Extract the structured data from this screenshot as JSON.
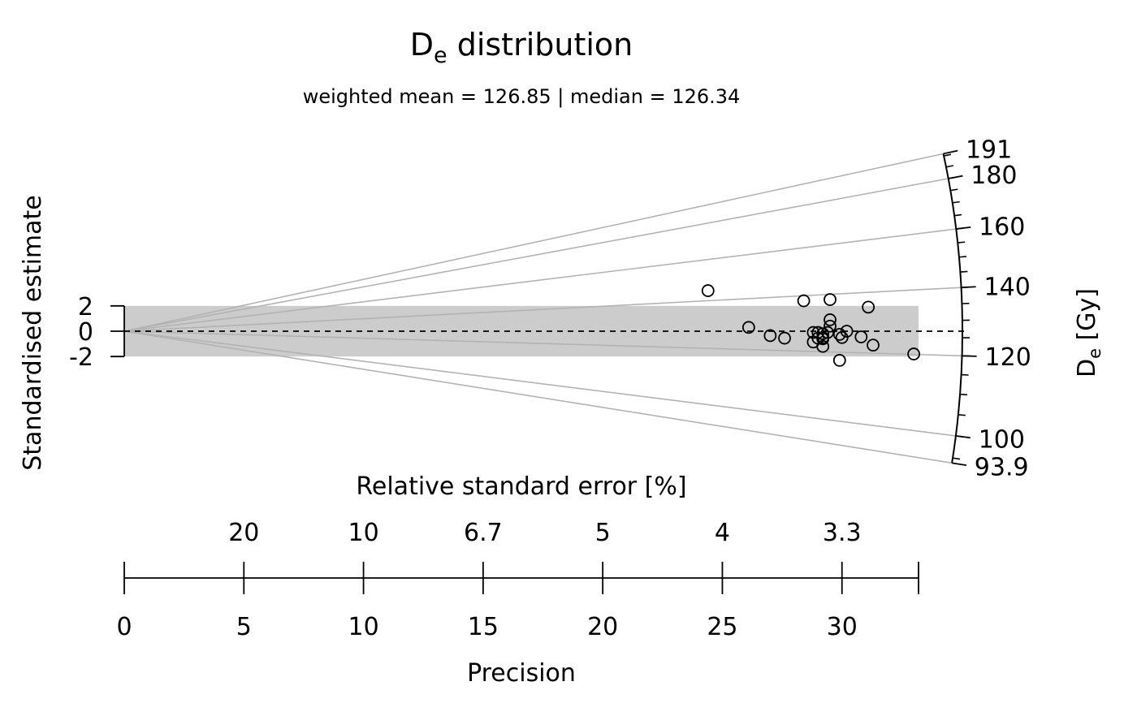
{
  "chart_data": {
    "type": "scatter",
    "variant": "radial",
    "title": {
      "main": "D",
      "sub": "e",
      "rest": " distribution"
    },
    "subtitle": "weighted mean = 126.85 | median = 126.34",
    "ylabel": "Standardised estimate",
    "y_ticks": [
      "2",
      "0",
      "-2"
    ],
    "y_band": [
      -2,
      2
    ],
    "zlabel": {
      "main": "D",
      "sub": "e",
      "rest": " [Gy]"
    },
    "z_ticks": [
      "191",
      "180",
      "160",
      "140",
      "120",
      "100",
      "93.9"
    ],
    "z_tick_values": [
      191,
      180,
      160,
      140,
      120,
      100,
      93.9
    ],
    "central_value": 126.85,
    "x_top_label": "Relative standard error [%]",
    "x_top_ticks": [
      "20",
      "10",
      "6.7",
      "5",
      "4",
      "3.3"
    ],
    "x_top_tick_precision": [
      5,
      10,
      15,
      20,
      25,
      30
    ],
    "xlabel": "Precision",
    "x_ticks": [
      "0",
      "5",
      "10",
      "15",
      "20",
      "25",
      "30"
    ],
    "x_tick_values": [
      0,
      5,
      10,
      15,
      20,
      25,
      30
    ],
    "xlim": [
      0,
      33.2
    ],
    "points": [
      {
        "x": 24.4,
        "y": 3.2
      },
      {
        "x": 28.4,
        "y": 2.4
      },
      {
        "x": 29.5,
        "y": 2.5
      },
      {
        "x": 31.1,
        "y": 1.9
      },
      {
        "x": 29.5,
        "y": 0.9
      },
      {
        "x": 26.1,
        "y": 0.3
      },
      {
        "x": 29.5,
        "y": 0.4
      },
      {
        "x": 30.2,
        "y": 0.0
      },
      {
        "x": 29.0,
        "y": -0.1
      },
      {
        "x": 29.4,
        "y": -0.1
      },
      {
        "x": 28.8,
        "y": -0.1
      },
      {
        "x": 29.2,
        "y": -0.2
      },
      {
        "x": 29.9,
        "y": -0.25
      },
      {
        "x": 27.0,
        "y": -0.35
      },
      {
        "x": 30.8,
        "y": -0.45
      },
      {
        "x": 27.6,
        "y": -0.55
      },
      {
        "x": 29.0,
        "y": -0.55
      },
      {
        "x": 29.2,
        "y": -0.5
      },
      {
        "x": 30.0,
        "y": -0.5
      },
      {
        "x": 29.2,
        "y": -0.6
      },
      {
        "x": 28.8,
        "y": -0.85
      },
      {
        "x": 31.3,
        "y": -1.1
      },
      {
        "x": 29.2,
        "y": -1.2
      },
      {
        "x": 33.0,
        "y": -1.8
      },
      {
        "x": 29.9,
        "y": -2.3
      }
    ]
  }
}
